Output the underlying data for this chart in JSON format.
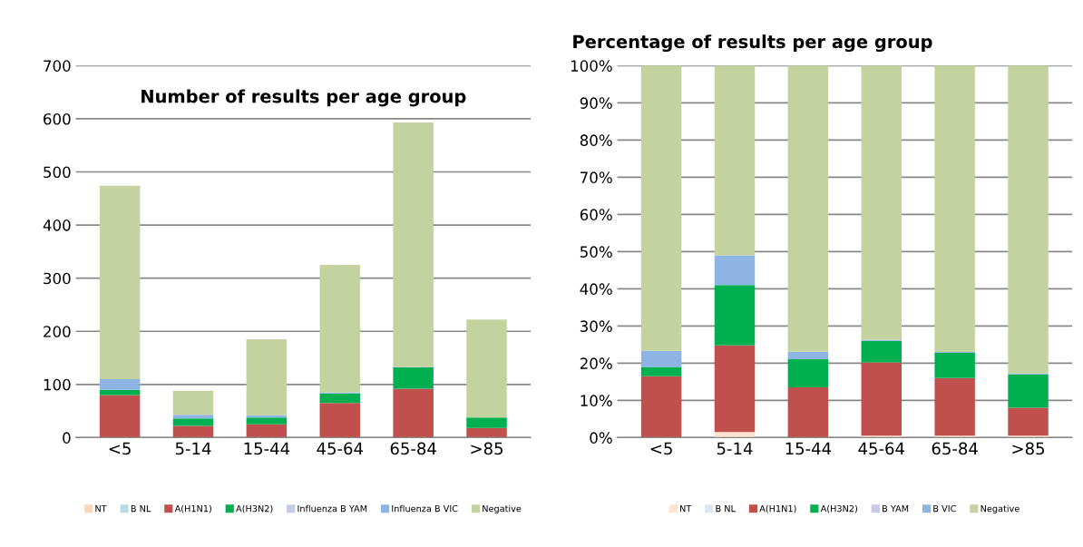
{
  "chart_data": [
    {
      "type": "bar",
      "title": "Number of results per age group",
      "stacked": true,
      "categories": [
        "<5",
        "5-14",
        "15-44",
        "45-64",
        "65-84",
        ">85"
      ],
      "series": [
        {
          "name": "NT",
          "color": "#fbd5b5",
          "values": [
            0,
            0,
            0,
            0,
            0,
            0
          ]
        },
        {
          "name": "B NL",
          "color": "#b7dee8",
          "values": [
            0,
            0,
            0,
            0,
            0,
            0
          ]
        },
        {
          "name": "A(H1N1)",
          "color": "#c0504d",
          "values": [
            80,
            22,
            25,
            65,
            92,
            18
          ]
        },
        {
          "name": "A(H3N2)",
          "color": "#00b050",
          "values": [
            10,
            14,
            13,
            18,
            40,
            20
          ]
        },
        {
          "name": "Influenza B YAM",
          "color": "#c5cbe6",
          "values": [
            0,
            0,
            0,
            0,
            0,
            0
          ]
        },
        {
          "name": "Influenza B VIC",
          "color": "#8eb4e3",
          "values": [
            20,
            7,
            4,
            2,
            1,
            0
          ]
        },
        {
          "name": "Negative",
          "color": "#c4d29f",
          "values": [
            364,
            45,
            143,
            240,
            460,
            184
          ]
        }
      ],
      "ylim": [
        0,
        700
      ],
      "yticks": [
        0,
        100,
        200,
        300,
        400,
        500,
        600,
        700
      ],
      "grid": "y",
      "legend": "bottom"
    },
    {
      "type": "bar",
      "title": "Percentage of results per age group",
      "stacked": true,
      "categories": [
        "<5",
        "5-14",
        "15-44",
        "45-64",
        "65-84",
        ">85"
      ],
      "series": [
        {
          "name": "NT",
          "color": "#fde3d0",
          "values": [
            0,
            1.5,
            0,
            0.5,
            0.5,
            0.5
          ]
        },
        {
          "name": "B NL",
          "color": "#dce6f2",
          "values": [
            0,
            0,
            0,
            0,
            0,
            0
          ]
        },
        {
          "name": "A(H1N1)",
          "color": "#c0504d",
          "values": [
            16.5,
            23.3,
            13.5,
            19.7,
            15.5,
            7.5
          ]
        },
        {
          "name": "A(H3N2)",
          "color": "#00b050",
          "values": [
            2.5,
            16.2,
            7.6,
            5.8,
            6.8,
            9
          ]
        },
        {
          "name": "B YAM",
          "color": "#c5cbe6",
          "values": [
            0,
            0,
            0,
            0,
            0,
            0
          ]
        },
        {
          "name": "B VIC",
          "color": "#8eb4e3",
          "values": [
            4.3,
            8,
            2,
            0.3,
            0.2,
            0.3
          ]
        },
        {
          "name": "Negative",
          "color": "#c4d29f",
          "values": [
            76.7,
            51,
            76.9,
            73.7,
            77,
            82.7
          ]
        }
      ],
      "ylim": [
        0,
        100
      ],
      "yticks": [
        {
          "value": 0,
          "label": "0%"
        },
        {
          "value": 10,
          "label": "10%"
        },
        {
          "value": 20,
          "label": "20%"
        },
        {
          "value": 30,
          "label": "30%"
        },
        {
          "value": 40,
          "label": "40%"
        },
        {
          "value": 50,
          "label": "50%"
        },
        {
          "value": 60,
          "label": "60%"
        },
        {
          "value": 70,
          "label": "70%"
        },
        {
          "value": 80,
          "label": "80%"
        },
        {
          "value": 90,
          "label": "90%"
        },
        {
          "value": 100,
          "label": "100%"
        }
      ],
      "grid": "y",
      "legend": "bottom"
    }
  ]
}
